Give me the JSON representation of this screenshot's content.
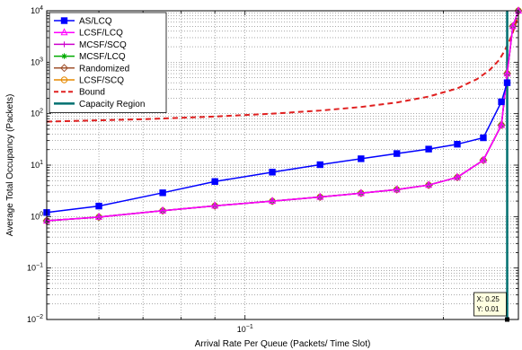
{
  "chart_data": {
    "type": "line",
    "xlabel": "Arrival Rate Per Queue (Packets/ Time Slot)",
    "ylabel": "Average Total Occupancy (Packets)",
    "xscale": "log",
    "yscale": "log",
    "xlim": [
      0.05,
      0.26
    ],
    "ylim": [
      0.01,
      10000
    ],
    "grid": true,
    "legend_position": "top-left",
    "x_tick_label": "10^-1",
    "y_tick_labels": [
      "10^-2",
      "10^-1",
      "10^0",
      "10^1",
      "10^2",
      "10^3",
      "10^4"
    ],
    "series": [
      {
        "name": "AS/LCQ",
        "color": "#0000ff",
        "marker": "square",
        "dash": "solid",
        "x": [
          0.05,
          0.06,
          0.075,
          0.09,
          0.11,
          0.13,
          0.15,
          0.17,
          0.19,
          0.21,
          0.23,
          0.245,
          0.25
        ],
        "y": [
          1.2,
          1.6,
          2.9,
          4.8,
          7.3,
          10.2,
          13.3,
          16.8,
          20.5,
          25.5,
          34.0,
          170,
          400
        ]
      },
      {
        "name": "LCSF/LCQ",
        "color": "#ff00ff",
        "marker": "triangle",
        "dash": "solid",
        "x": [
          0.05,
          0.06,
          0.075,
          0.09,
          0.11,
          0.13,
          0.15,
          0.17,
          0.19,
          0.21,
          0.23,
          0.245,
          0.25,
          0.255,
          0.26
        ],
        "y": [
          0.83,
          0.98,
          1.3,
          1.62,
          2.0,
          2.4,
          2.85,
          3.35,
          4.1,
          5.8,
          12.5,
          60,
          600,
          5000,
          10000
        ]
      },
      {
        "name": "MCSF/SCQ",
        "color": "#cc00cc",
        "marker": "plus",
        "dash": "solid",
        "x": [
          0.05,
          0.06,
          0.075,
          0.09,
          0.11,
          0.13,
          0.15,
          0.17,
          0.19,
          0.21,
          0.23,
          0.245,
          0.25,
          0.255,
          0.26
        ],
        "y": [
          0.83,
          0.98,
          1.3,
          1.62,
          2.0,
          2.4,
          2.85,
          3.35,
          4.1,
          5.8,
          12.5,
          60,
          600,
          5000,
          10000
        ]
      },
      {
        "name": "MCSF/LCQ",
        "color": "#00aa00",
        "marker": "asterisk",
        "dash": "solid",
        "x": [
          0.05,
          0.06,
          0.075,
          0.09,
          0.11,
          0.13,
          0.15,
          0.17,
          0.19,
          0.21,
          0.23,
          0.245,
          0.25,
          0.255,
          0.26
        ],
        "y": [
          0.83,
          0.98,
          1.3,
          1.62,
          2.0,
          2.4,
          2.85,
          3.35,
          4.1,
          5.8,
          12.5,
          60,
          600,
          5000,
          10000
        ]
      },
      {
        "name": "Randomized",
        "color": "#a0522d",
        "marker": "diamond",
        "dash": "solid",
        "x": [
          0.05,
          0.06,
          0.075,
          0.09,
          0.11,
          0.13,
          0.15,
          0.17,
          0.19,
          0.21,
          0.23,
          0.245,
          0.25,
          0.255,
          0.26
        ],
        "y": [
          0.83,
          0.98,
          1.3,
          1.62,
          2.0,
          2.4,
          2.85,
          3.35,
          4.1,
          5.8,
          12.5,
          60,
          600,
          5000,
          10000
        ]
      },
      {
        "name": "LCSF/SCQ",
        "color": "#e68a00",
        "marker": "circle",
        "dash": "solid",
        "x": [
          0.05,
          0.06,
          0.075,
          0.09,
          0.11,
          0.13,
          0.15,
          0.17,
          0.19,
          0.21,
          0.23,
          0.245,
          0.25,
          0.255,
          0.26
        ],
        "y": [
          0.83,
          0.98,
          1.3,
          1.62,
          2.0,
          2.4,
          2.85,
          3.35,
          4.1,
          5.8,
          12.5,
          60,
          600,
          5000,
          10000
        ]
      },
      {
        "name": "Bound",
        "color": "#e02020",
        "marker": "none",
        "dash": "dashed",
        "x": [
          0.05,
          0.07,
          0.09,
          0.11,
          0.13,
          0.15,
          0.17,
          0.19,
          0.21,
          0.225,
          0.235,
          0.243,
          0.248,
          0.252,
          0.255,
          0.258,
          0.26
        ],
        "y": [
          70,
          78,
          88,
          100,
          115,
          135,
          165,
          215,
          310,
          470,
          700,
          1100,
          1700,
          2600,
          3800,
          6000,
          10000
        ]
      },
      {
        "name": "Capacity Region",
        "color": "#007070",
        "marker": "none",
        "dash": "solid",
        "x": [
          0.25,
          0.25
        ],
        "y": [
          0.01,
          10000
        ]
      }
    ],
    "datatip": {
      "x_text": "X: 0.25",
      "y_text": "Y: 0.01"
    }
  }
}
